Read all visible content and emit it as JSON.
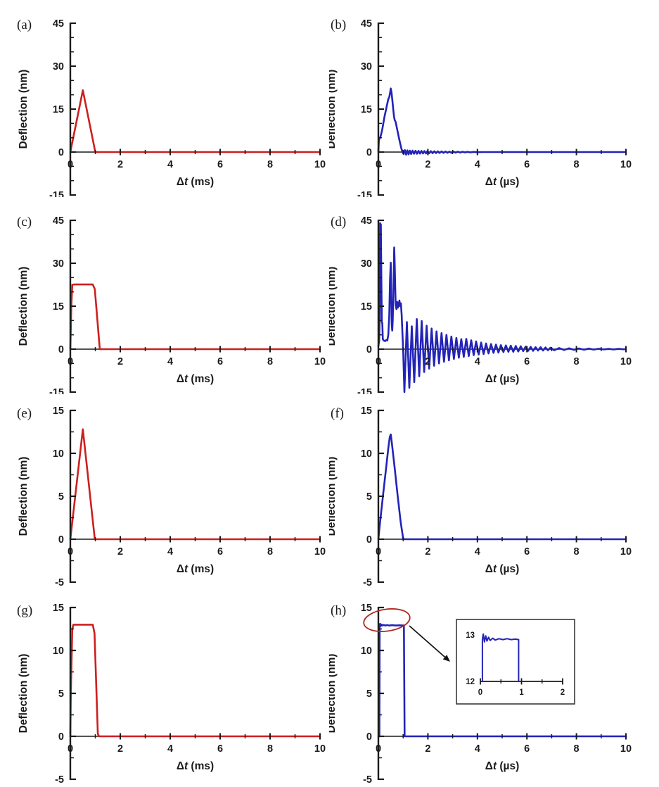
{
  "figure": {
    "background": "#ffffff",
    "axis_color": "#1a1a1a",
    "text_color": "#1a1a1a",
    "series_colors": {
      "red": "#cd1f1f",
      "blue": "#2323b8"
    },
    "annotation_colors": {
      "ellipse": "#b0291f",
      "arrow": "#111111"
    }
  },
  "chart_data": [
    {
      "id": "a",
      "panel_label": "(a)",
      "type": "line",
      "series_color": "red",
      "xlabel": "Δt (ms)",
      "ylabel": "Deflection (nm)",
      "xlim": [
        0,
        10
      ],
      "ylim": [
        -15,
        45
      ],
      "xticks": [
        0,
        2,
        4,
        6,
        8,
        10
      ],
      "xminor": [
        1,
        3,
        5,
        7,
        9
      ],
      "yticks": [
        45,
        30,
        15,
        0,
        -15
      ],
      "yminor": [
        40,
        35,
        25,
        20,
        10,
        5,
        -5,
        -10
      ],
      "points": [
        [
          0,
          0
        ],
        [
          0.5,
          21.6
        ],
        [
          1.0,
          0
        ],
        [
          1.05,
          0
        ],
        [
          10,
          0
        ]
      ]
    },
    {
      "id": "b",
      "panel_label": "(b)",
      "type": "line",
      "series_color": "blue",
      "xlabel": "Δt (µs)",
      "ylabel": "Deflection (nm)",
      "xlim": [
        0,
        10
      ],
      "ylim": [
        -15,
        45
      ],
      "xticks": [
        0,
        2,
        4,
        6,
        8,
        10
      ],
      "xminor": [
        1,
        3,
        5,
        7,
        9
      ],
      "yticks": [
        45,
        30,
        15,
        0,
        -15
      ],
      "yminor": [
        40,
        35,
        25,
        20,
        10,
        5,
        -5,
        -10
      ],
      "points": [
        [
          0,
          0
        ],
        [
          0.02,
          4.2
        ],
        [
          0.05,
          4.8
        ],
        [
          0.08,
          5.2
        ],
        [
          0.12,
          6.5
        ],
        [
          0.16,
          8
        ],
        [
          0.2,
          10
        ],
        [
          0.25,
          12.5
        ],
        [
          0.3,
          14.5
        ],
        [
          0.35,
          16.5
        ],
        [
          0.4,
          18.5
        ],
        [
          0.44,
          19.2
        ],
        [
          0.47,
          20.5
        ],
        [
          0.5,
          22.2
        ],
        [
          0.53,
          20.8
        ],
        [
          0.56,
          18.5
        ],
        [
          0.6,
          15
        ],
        [
          0.63,
          12.5
        ],
        [
          0.66,
          11.2
        ],
        [
          0.7,
          10.5
        ],
        [
          0.74,
          8.8
        ],
        [
          0.78,
          7
        ],
        [
          0.83,
          5
        ],
        [
          0.88,
          3
        ],
        [
          0.93,
          1.2
        ],
        [
          0.98,
          0
        ],
        [
          1.02,
          -0.7
        ],
        [
          1.07,
          0.7
        ],
        [
          1.12,
          -0.9
        ],
        [
          1.17,
          0.6
        ],
        [
          1.22,
          -0.8
        ],
        [
          1.27,
          0.5
        ],
        [
          1.32,
          -0.7
        ],
        [
          1.38,
          0.5
        ],
        [
          1.44,
          -0.6
        ],
        [
          1.5,
          0.45
        ],
        [
          1.56,
          -0.6
        ],
        [
          1.62,
          0.4
        ],
        [
          1.68,
          -0.55
        ],
        [
          1.74,
          0.4
        ],
        [
          1.8,
          -0.5
        ],
        [
          1.86,
          0.35
        ],
        [
          1.92,
          -0.5
        ],
        [
          1.98,
          0.3
        ],
        [
          2.05,
          -0.45
        ],
        [
          2.12,
          0.3
        ],
        [
          2.19,
          -0.4
        ],
        [
          2.26,
          0.28
        ],
        [
          2.33,
          -0.38
        ],
        [
          2.4,
          0.25
        ],
        [
          2.47,
          -0.33
        ],
        [
          2.55,
          0.22
        ],
        [
          2.63,
          -0.3
        ],
        [
          2.71,
          0.2
        ],
        [
          2.79,
          -0.27
        ],
        [
          2.87,
          0.18
        ],
        [
          2.95,
          -0.24
        ],
        [
          3.03,
          0.15
        ],
        [
          3.12,
          -0.2
        ],
        [
          3.21,
          0.12
        ],
        [
          3.3,
          -0.17
        ],
        [
          3.4,
          0.1
        ],
        [
          3.5,
          -0.13
        ],
        [
          3.6,
          0.08
        ],
        [
          3.7,
          -0.1
        ],
        [
          3.85,
          0.06
        ],
        [
          4.0,
          -0.05
        ],
        [
          4.2,
          0
        ],
        [
          10,
          0
        ]
      ]
    },
    {
      "id": "c",
      "panel_label": "(c)",
      "type": "line",
      "series_color": "red",
      "xlabel": "Δt (ms)",
      "ylabel": "Deflection (nm)",
      "xlim": [
        0,
        10
      ],
      "ylim": [
        -15,
        45
      ],
      "xticks": [
        0,
        2,
        4,
        6,
        8,
        10
      ],
      "xminor": [
        1,
        3,
        5,
        7,
        9
      ],
      "yticks": [
        45,
        30,
        15,
        0,
        -15
      ],
      "yminor": [
        40,
        35,
        25,
        20,
        10,
        5,
        -5,
        -10
      ],
      "points": [
        [
          0,
          0
        ],
        [
          0.04,
          15
        ],
        [
          0.08,
          22.5
        ],
        [
          0.15,
          22.6
        ],
        [
          0.9,
          22.6
        ],
        [
          0.98,
          21
        ],
        [
          1.18,
          0
        ],
        [
          1.22,
          0
        ],
        [
          10,
          0
        ]
      ]
    },
    {
      "id": "d",
      "panel_label": "(d)",
      "type": "line",
      "series_color": "blue",
      "xlabel": "Δt (µs)",
      "ylabel": "Deflection (nm)",
      "xlim": [
        0,
        10
      ],
      "ylim": [
        -15,
        45
      ],
      "xticks": [
        0,
        2,
        4,
        6,
        8,
        10
      ],
      "xminor": [
        1,
        3,
        5,
        7,
        9
      ],
      "yticks": [
        45,
        30,
        15,
        0,
        -15
      ],
      "yminor": [
        40,
        35,
        25,
        20,
        10,
        5,
        -5,
        -10
      ],
      "points": [
        [
          0,
          1
        ],
        [
          0.03,
          3
        ],
        [
          0.05,
          10
        ],
        [
          0.07,
          44
        ],
        [
          0.1,
          43.5
        ],
        [
          0.12,
          25
        ],
        [
          0.14,
          9.5
        ],
        [
          0.16,
          9
        ],
        [
          0.18,
          3.5
        ],
        [
          0.22,
          3
        ],
        [
          0.27,
          2.8
        ],
        [
          0.32,
          3.2
        ],
        [
          0.36,
          3
        ],
        [
          0.4,
          5
        ],
        [
          0.44,
          12
        ],
        [
          0.47,
          24
        ],
        [
          0.5,
          30.2
        ],
        [
          0.52,
          18
        ],
        [
          0.54,
          8.5
        ],
        [
          0.56,
          6.5
        ],
        [
          0.58,
          10
        ],
        [
          0.61,
          22
        ],
        [
          0.64,
          35.5
        ],
        [
          0.66,
          30
        ],
        [
          0.68,
          22
        ],
        [
          0.7,
          15.5
        ],
        [
          0.73,
          14
        ],
        [
          0.76,
          16.5
        ],
        [
          0.79,
          14.5
        ],
        [
          0.82,
          15.5
        ],
        [
          0.85,
          17
        ],
        [
          0.88,
          15
        ],
        [
          0.91,
          16
        ],
        [
          0.94,
          12
        ],
        [
          0.97,
          6
        ],
        [
          1.0,
          0
        ],
        [
          1.05,
          -15
        ],
        [
          1.15,
          9.5
        ],
        [
          1.25,
          -13.5
        ],
        [
          1.35,
          8
        ],
        [
          1.45,
          -11.5
        ],
        [
          1.55,
          10.5
        ],
        [
          1.65,
          -9.5
        ],
        [
          1.75,
          9.8
        ],
        [
          1.85,
          -8
        ],
        [
          1.95,
          8.2
        ],
        [
          2.05,
          -6.8
        ],
        [
          2.15,
          7.2
        ],
        [
          2.25,
          -5.8
        ],
        [
          2.35,
          6.2
        ],
        [
          2.45,
          -5
        ],
        [
          2.55,
          5.6
        ],
        [
          2.65,
          -4.4
        ],
        [
          2.75,
          5
        ],
        [
          2.85,
          -3.9
        ],
        [
          2.95,
          4.4
        ],
        [
          3.05,
          -3.4
        ],
        [
          3.15,
          3.9
        ],
        [
          3.25,
          -3
        ],
        [
          3.35,
          3.5
        ],
        [
          3.45,
          -2.7
        ],
        [
          3.55,
          3.6
        ],
        [
          3.65,
          -2.4
        ],
        [
          3.75,
          3.1
        ],
        [
          3.85,
          -2.1
        ],
        [
          3.95,
          2.7
        ],
        [
          4.05,
          -1.9
        ],
        [
          4.15,
          2.3
        ],
        [
          4.25,
          -1.7
        ],
        [
          4.35,
          2
        ],
        [
          4.45,
          -1.5
        ],
        [
          4.55,
          1.8
        ],
        [
          4.65,
          -1.3
        ],
        [
          4.75,
          1.6
        ],
        [
          4.85,
          -1.2
        ],
        [
          4.95,
          1.4
        ],
        [
          5.05,
          -1
        ],
        [
          5.15,
          1.3
        ],
        [
          5.25,
          -0.9
        ],
        [
          5.35,
          1.2
        ],
        [
          5.45,
          -0.9
        ],
        [
          5.55,
          1.1
        ],
        [
          5.65,
          -0.8
        ],
        [
          5.75,
          1
        ],
        [
          5.85,
          -0.7
        ],
        [
          5.95,
          0.9
        ],
        [
          6.05,
          -0.6
        ],
        [
          6.15,
          0.8
        ],
        [
          6.25,
          -0.6
        ],
        [
          6.35,
          0.7
        ],
        [
          6.45,
          -0.5
        ],
        [
          6.55,
          0.7
        ],
        [
          6.65,
          -0.5
        ],
        [
          6.75,
          0.6
        ],
        [
          6.85,
          -0.4
        ],
        [
          6.95,
          0.5
        ],
        [
          7.1,
          -0.4
        ],
        [
          7.3,
          0.4
        ],
        [
          7.5,
          -0.3
        ],
        [
          7.7,
          0.3
        ],
        [
          7.9,
          -0.25
        ],
        [
          8.1,
          0.25
        ],
        [
          8.3,
          -0.2
        ],
        [
          8.5,
          0.2
        ],
        [
          8.7,
          -0.15
        ],
        [
          8.9,
          0.15
        ],
        [
          9.1,
          -0.1
        ],
        [
          9.3,
          0.1
        ],
        [
          9.5,
          -0.1
        ],
        [
          9.7,
          0.1
        ],
        [
          9.9,
          -0.05
        ],
        [
          10,
          0
        ]
      ]
    },
    {
      "id": "e",
      "panel_label": "(e)",
      "type": "line",
      "series_color": "red",
      "xlabel": "Δt (ms)",
      "ylabel": "Deflection (nm)",
      "xlim": [
        0,
        10
      ],
      "ylim": [
        -5,
        15
      ],
      "xticks": [
        0,
        2,
        4,
        6,
        8,
        10
      ],
      "xminor": [
        1,
        3,
        5,
        7,
        9
      ],
      "yticks": [
        15,
        10,
        5,
        0,
        -5
      ],
      "yminor": [
        12.5,
        7.5,
        2.5,
        -2.5
      ],
      "points": [
        [
          0,
          0
        ],
        [
          0.5,
          12.8
        ],
        [
          0.98,
          0
        ],
        [
          1.02,
          0
        ],
        [
          10,
          0
        ]
      ]
    },
    {
      "id": "f",
      "panel_label": "(f)",
      "type": "line",
      "series_color": "blue",
      "xlabel": "Δt (µs)",
      "ylabel": "Deflection (nm)",
      "xlim": [
        0,
        10
      ],
      "ylim": [
        -5,
        15
      ],
      "xticks": [
        0,
        2,
        4,
        6,
        8,
        10
      ],
      "xminor": [
        1,
        3,
        5,
        7,
        9
      ],
      "yticks": [
        15,
        10,
        5,
        0,
        -5
      ],
      "yminor": [
        12.5,
        7.5,
        2.5,
        -2.5
      ],
      "points": [
        [
          0,
          0
        ],
        [
          0.04,
          1.2
        ],
        [
          0.1,
          2.8
        ],
        [
          0.2,
          5.4
        ],
        [
          0.3,
          8
        ],
        [
          0.4,
          10.6
        ],
        [
          0.46,
          11.9
        ],
        [
          0.5,
          12.2
        ],
        [
          0.54,
          11.3
        ],
        [
          0.65,
          8.5
        ],
        [
          0.78,
          5
        ],
        [
          0.9,
          2
        ],
        [
          1.0,
          0.1
        ],
        [
          1.05,
          0
        ],
        [
          10,
          0
        ]
      ]
    },
    {
      "id": "g",
      "panel_label": "(g)",
      "type": "line",
      "series_color": "red",
      "xlabel": "Δt (ms)",
      "ylabel": "Deflection (nm)",
      "xlim": [
        0,
        10
      ],
      "ylim": [
        -5,
        15
      ],
      "xticks": [
        0,
        2,
        4,
        6,
        8,
        10
      ],
      "xminor": [
        1,
        3,
        5,
        7,
        9
      ],
      "yticks": [
        15,
        10,
        5,
        0,
        -5
      ],
      "yminor": [
        12.5,
        7.5,
        2.5,
        -2.5
      ],
      "points": [
        [
          0,
          0
        ],
        [
          0.02,
          5
        ],
        [
          0.08,
          12.5
        ],
        [
          0.12,
          13
        ],
        [
          0.9,
          13
        ],
        [
          0.97,
          12
        ],
        [
          1.1,
          0.3
        ],
        [
          1.15,
          0
        ],
        [
          10,
          0
        ]
      ]
    },
    {
      "id": "h",
      "panel_label": "(h)",
      "type": "line",
      "series_color": "blue",
      "xlabel": "Δt (µs)",
      "ylabel": "Deflection (nm)",
      "xlim": [
        0,
        10
      ],
      "ylim": [
        -5,
        15
      ],
      "xticks": [
        0,
        2,
        4,
        6,
        8,
        10
      ],
      "xminor": [
        1,
        3,
        5,
        7,
        9
      ],
      "yticks": [
        15,
        10,
        5,
        0,
        -5
      ],
      "yminor": [
        12.5,
        7.5,
        2.5,
        -2.5
      ],
      "points": [
        [
          0,
          0
        ],
        [
          0.04,
          0
        ],
        [
          0.05,
          12.7
        ],
        [
          0.07,
          13.1
        ],
        [
          0.1,
          12.85
        ],
        [
          0.13,
          13
        ],
        [
          0.17,
          12.9
        ],
        [
          0.22,
          12.97
        ],
        [
          0.28,
          12.9
        ],
        [
          0.35,
          12.95
        ],
        [
          0.45,
          12.9
        ],
        [
          0.55,
          12.94
        ],
        [
          0.7,
          12.9
        ],
        [
          0.85,
          12.93
        ],
        [
          1.0,
          12.9
        ],
        [
          1.03,
          12.9
        ],
        [
          1.06,
          0
        ],
        [
          10,
          0
        ]
      ],
      "annotations": {
        "circle_highlight": true,
        "arrow_to_inset": true
      },
      "inset": {
        "type": "line",
        "series_color": "blue",
        "xlim": [
          0,
          2
        ],
        "ylim": [
          12,
          13
        ],
        "xticks": [
          0,
          1,
          2
        ],
        "xminor": [
          0.5,
          1.5
        ],
        "yticks": [
          13,
          12
        ],
        "points": [
          [
            0.05,
            12.0
          ],
          [
            0.05,
            12.9
          ],
          [
            0.07,
            13.02
          ],
          [
            0.1,
            12.85
          ],
          [
            0.13,
            12.98
          ],
          [
            0.16,
            12.87
          ],
          [
            0.2,
            12.95
          ],
          [
            0.24,
            12.88
          ],
          [
            0.3,
            12.93
          ],
          [
            0.36,
            12.89
          ],
          [
            0.45,
            12.92
          ],
          [
            0.55,
            12.9
          ],
          [
            0.65,
            12.92
          ],
          [
            0.75,
            12.9
          ],
          [
            0.85,
            12.91
          ],
          [
            0.93,
            12.9
          ],
          [
            0.93,
            12.0
          ]
        ]
      }
    }
  ]
}
